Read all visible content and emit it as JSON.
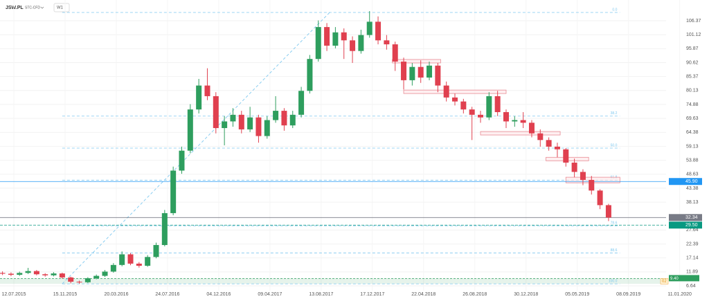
{
  "header": {
    "symbol": "JSW.PL",
    "feed": "STC-CFD",
    "interval": "W1"
  },
  "chart_data": {
    "type": "candlestick",
    "xlim": [
      -4.87,
      244.3
    ],
    "ylim": [
      4.82,
      114.18
    ],
    "xticks": [
      {
        "value": 0,
        "label": "12.07.2015"
      },
      {
        "value": 18,
        "label": "15.11.2015"
      },
      {
        "value": 36,
        "label": "20.03.2016"
      },
      {
        "value": 54,
        "label": "24.07.2016"
      },
      {
        "value": 72,
        "label": "04.12.2016"
      },
      {
        "value": 90,
        "label": "09.04.2017"
      },
      {
        "value": 108,
        "label": "13.08.2017"
      },
      {
        "value": 126,
        "label": "17.12.2017"
      },
      {
        "value": 144,
        "label": "22.04.2018"
      },
      {
        "value": 162,
        "label": "26.08.2018"
      },
      {
        "value": 180,
        "label": "30.12.2018"
      },
      {
        "value": 198,
        "label": "05.05.2019"
      },
      {
        "value": 216,
        "label": "08.09.2019"
      },
      {
        "value": 234,
        "label": "11.01.2020"
      }
    ],
    "yticks": [
      106.37,
      101.12,
      95.87,
      90.62,
      85.37,
      80.13,
      74.88,
      69.63,
      64.38,
      59.13,
      53.88,
      48.63,
      43.38,
      38.13,
      27.64,
      22.39,
      17.14,
      11.89,
      6.64
    ],
    "grid": true,
    "up_color": "#2e9e5e",
    "down_color": "#e0404f",
    "x": [
      -4,
      -1,
      2,
      5,
      8,
      11,
      14,
      17,
      20,
      23,
      26,
      29,
      32,
      35,
      38,
      41,
      44,
      47,
      50,
      53,
      56,
      59,
      62,
      65,
      68,
      71,
      74,
      77,
      80,
      83,
      86,
      89,
      92,
      95,
      98,
      101,
      104,
      107,
      110,
      113,
      116,
      119,
      122,
      125,
      128,
      131,
      134,
      137,
      140,
      143,
      146,
      149,
      152,
      155,
      158,
      161,
      164,
      167,
      170,
      173,
      176,
      179,
      182,
      185,
      188,
      191,
      194,
      197,
      200,
      203,
      206,
      209
    ],
    "open": [
      11.5,
      11.2,
      10.8,
      11.5,
      12.2,
      11.0,
      10.6,
      11.3,
      9.8,
      8.2,
      8.0,
      9.5,
      10.4,
      12.0,
      14.5,
      18.5,
      15.0,
      14.2,
      17.5,
      22.0,
      34.0,
      50.0,
      57.5,
      73.0,
      82.0,
      78.0,
      66.0,
      68.5,
      71.0,
      65.5,
      70.0,
      63.0,
      69.0,
      72.5,
      67.0,
      71.0,
      80.0,
      92.0,
      104.0,
      97.0,
      102.0,
      99.0,
      95.0,
      101.0,
      106.0,
      99.0,
      97.5,
      91.0,
      84.0,
      89.0,
      85.0,
      89.5,
      82.0,
      77.5,
      76.0,
      73.0,
      71.0,
      70.0,
      78.0,
      72.0,
      68.5,
      69.0,
      68.0,
      64.0,
      61.5,
      59.0,
      58.0,
      53.0,
      49.5,
      46.5,
      42.5,
      37.0
    ],
    "high": [
      12.1,
      11.7,
      12.0,
      13.4,
      12.6,
      11.4,
      11.8,
      11.6,
      10.1,
      8.6,
      9.9,
      10.9,
      12.6,
      15.2,
      19.6,
      19.0,
      15.6,
      18.2,
      22.9,
      35.2,
      51.5,
      59.0,
      75.0,
      84.5,
      88.5,
      79.5,
      70.5,
      73.5,
      72.5,
      74.0,
      71.0,
      70.5,
      78.0,
      73.5,
      72.5,
      81.5,
      93.5,
      106.5,
      105.5,
      104.0,
      103.5,
      100.5,
      103.0,
      110.0,
      108.0,
      101.0,
      98.5,
      92.5,
      90.5,
      91.5,
      91.0,
      90.5,
      83.5,
      79.0,
      77.0,
      74.0,
      72.5,
      79.5,
      80.0,
      73.0,
      70.5,
      72.0,
      69.0,
      65.5,
      62.5,
      60.5,
      58.5,
      54.5,
      50.5,
      48.0,
      43.0,
      37.5
    ],
    "low": [
      10.7,
      10.3,
      10.4,
      11.1,
      10.6,
      10.1,
      10.2,
      9.3,
      7.6,
      7.4,
      7.7,
      9.1,
      10.0,
      11.6,
      14.0,
      14.4,
      13.5,
      13.8,
      17.0,
      21.5,
      33.2,
      48.8,
      56.5,
      71.5,
      76.5,
      64.0,
      59.5,
      66.5,
      64.0,
      64.5,
      60.5,
      62.0,
      68.0,
      65.0,
      66.0,
      70.0,
      79.0,
      91.0,
      95.0,
      96.0,
      92.0,
      90.5,
      94.0,
      100.0,
      97.5,
      95.5,
      87.5,
      80.5,
      82.0,
      83.0,
      84.0,
      79.5,
      76.0,
      74.5,
      71.5,
      61.5,
      68.0,
      69.0,
      70.5,
      66.0,
      66.5,
      66.0,
      62.5,
      59.0,
      57.5,
      55.0,
      51.5,
      47.5,
      44.5,
      41.0,
      35.5,
      31.0
    ],
    "close": [
      11.2,
      10.8,
      11.5,
      12.2,
      11.0,
      10.6,
      11.3,
      9.8,
      8.2,
      8.0,
      9.5,
      10.4,
      12.0,
      14.5,
      18.5,
      15.0,
      14.2,
      17.5,
      22.0,
      34.0,
      50.0,
      57.5,
      73.0,
      82.0,
      78.0,
      66.0,
      68.5,
      71.0,
      65.5,
      70.0,
      63.0,
      69.0,
      72.5,
      67.0,
      71.0,
      80.0,
      92.0,
      104.0,
      97.0,
      102.0,
      99.0,
      95.0,
      101.0,
      106.0,
      99.0,
      97.5,
      91.0,
      84.0,
      89.0,
      85.0,
      89.5,
      82.0,
      77.5,
      76.0,
      73.0,
      71.0,
      70.0,
      78.0,
      72.0,
      68.5,
      69.0,
      68.0,
      64.0,
      61.5,
      59.0,
      58.0,
      53.0,
      49.5,
      46.5,
      42.5,
      37.0,
      32.34
    ],
    "fib": {
      "x": [
        17,
        213
      ],
      "levels": [
        {
          "value": 109.5,
          "label": "0.0"
        },
        {
          "value": 70.5,
          "label": "38.2"
        },
        {
          "value": 58.45,
          "label": "50.0"
        },
        {
          "value": 46.4,
          "label": "61.8"
        },
        {
          "value": 29.25,
          "label": "78.6"
        },
        {
          "value": 19.0,
          "label": "88.6"
        },
        {
          "value": 7.4,
          "label": "100.0"
        }
      ]
    },
    "trendline": {
      "x": [
        17,
        111
      ],
      "y": [
        7.4,
        109.5
      ]
    },
    "zones": [
      {
        "x0": 133,
        "x1": 150,
        "y0": 90.5,
        "y1": 91.8
      },
      {
        "x0": 137,
        "x1": 173,
        "y0": 79.0,
        "y1": 80.3
      },
      {
        "x0": 164,
        "x1": 192,
        "y0": 63.4,
        "y1": 64.7
      },
      {
        "x0": 187,
        "x1": 202,
        "y0": 53.7,
        "y1": 55.0
      },
      {
        "x0": 194,
        "x1": 213,
        "y0": 45.4,
        "y1": 47.5
      }
    ],
    "price_lines": [
      {
        "value": 45.9,
        "label": "45.90",
        "color": "#2196f3"
      },
      {
        "value": 32.34,
        "label": "32.34",
        "color": "#787b86"
      },
      {
        "value": 29.5,
        "label": "29.50",
        "color": "#089981"
      }
    ],
    "band": {
      "y": [
        7.4,
        9.4
      ],
      "label": "9.40",
      "badge": "02",
      "color": "#2e9e5e"
    }
  }
}
